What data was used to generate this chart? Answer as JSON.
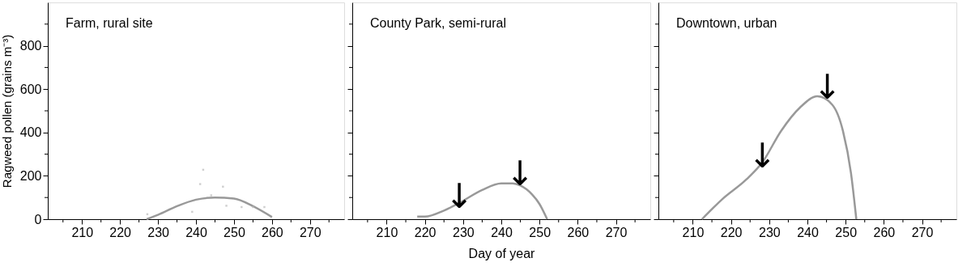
{
  "chart_data": [
    {
      "type": "line",
      "title": "Farm, rural site",
      "ylabel": "Ragweed pollen (grains m⁻³)",
      "xlim": [
        201,
        279
      ],
      "ylim": [
        0,
        1000
      ],
      "xticks": [
        {
          "value": 205,
          "label": null
        },
        210,
        {
          "value": 215,
          "label": null
        },
        220,
        {
          "value": 225,
          "label": null
        },
        230,
        {
          "value": 235,
          "label": null
        },
        240,
        {
          "value": 245,
          "label": null
        },
        250,
        {
          "value": 255,
          "label": null
        },
        260,
        {
          "value": 265,
          "label": null
        },
        270,
        {
          "value": 275,
          "label": null
        }
      ],
      "yticks": [
        0,
        {
          "value": 100,
          "label": null
        },
        200,
        {
          "value": 300,
          "label": null
        },
        400,
        {
          "value": 500,
          "label": null
        },
        600,
        {
          "value": 700,
          "label": null
        },
        800,
        {
          "value": 900,
          "label": null
        }
      ],
      "grid": false,
      "series": [
        {
          "color": "#999999",
          "x": [
            227,
            230,
            235,
            240,
            245,
            250,
            255,
            260
          ],
          "values": [
            0,
            20,
            60,
            90,
            100,
            95,
            60,
            10
          ]
        },
        {
          "type": "scatter",
          "color": "#bbbbbb",
          "x": [
            227.2,
            239,
            241.1,
            241.9,
            244,
            247.1,
            248,
            252,
            255,
            258
          ],
          "values": [
            23,
            34,
            162,
            228,
            110,
            150,
            62,
            56,
            56,
            56
          ]
        }
      ]
    },
    {
      "type": "line",
      "title": "County Park, semi-rural",
      "xlabel": "Day of year",
      "xlim": [
        201,
        279
      ],
      "ylim": [
        0,
        1000
      ],
      "tick_labels": "x",
      "xticks": [
        {
          "value": 205,
          "label": null
        },
        210,
        {
          "value": 215,
          "label": null
        },
        220,
        {
          "value": 225,
          "label": null
        },
        230,
        {
          "value": 235,
          "label": null
        },
        240,
        {
          "value": 245,
          "label": null
        },
        250,
        {
          "value": 255,
          "label": null
        },
        260,
        {
          "value": 265,
          "label": null
        },
        270,
        {
          "value": 275,
          "label": null
        }
      ],
      "yticks": [
        0,
        {
          "value": 100,
          "label": null
        },
        200,
        {
          "value": 300,
          "label": null
        },
        400,
        {
          "value": 500,
          "label": null
        },
        600,
        {
          "value": 700,
          "label": null
        },
        800,
        {
          "value": 900,
          "label": null
        }
      ],
      "grid": false,
      "annotations": [
        {
          "text": "↓",
          "x": 229,
          "y": 75
        },
        {
          "text": "↓",
          "x": 244.9,
          "y": 179
        }
      ],
      "series": [
        {
          "color": "#999999",
          "x": [
            218,
            220,
            225,
            229,
            235,
            240,
            243,
            245,
            248,
            250,
            252
          ],
          "values": [
            12,
            12,
            40,
            75,
            135,
            165,
            165,
            155,
            115,
            70,
            0
          ]
        }
      ]
    },
    {
      "type": "line",
      "title": "Downtown, urban",
      "xlim": [
        201,
        279
      ],
      "ylim": [
        0,
        1000
      ],
      "tick_labels": "x",
      "xticks": [
        {
          "value": 205,
          "label": null
        },
        210,
        {
          "value": 215,
          "label": null
        },
        220,
        {
          "value": 225,
          "label": null
        },
        230,
        {
          "value": 235,
          "label": null
        },
        240,
        {
          "value": 245,
          "label": null
        },
        250,
        {
          "value": 255,
          "label": null
        },
        260,
        {
          "value": 265,
          "label": null
        },
        270,
        {
          "value": 275,
          "label": null
        }
      ],
      "yticks": [
        0,
        {
          "value": 100,
          "label": null
        },
        200,
        {
          "value": 300,
          "label": null
        },
        400,
        {
          "value": 500,
          "label": null
        },
        600,
        {
          "value": 700,
          "label": null
        },
        800,
        {
          "value": 900,
          "label": null
        }
      ],
      "grid": false,
      "annotations": [
        {
          "text": "↓",
          "x": 228.2,
          "y": 262
        },
        {
          "text": "↓",
          "x": 245.2,
          "y": 578
        }
      ],
      "series": [
        {
          "color": "#999999",
          "x": [
            212.4,
            217.7,
            224,
            228.2,
            233.1,
            238.1,
            242.6,
            246.5,
            249.3,
            251.4,
            252.8
          ],
          "values": [
            0,
            92,
            183,
            262,
            407,
            516,
            567,
            528,
            407,
            213,
            0
          ]
        }
      ]
    }
  ]
}
